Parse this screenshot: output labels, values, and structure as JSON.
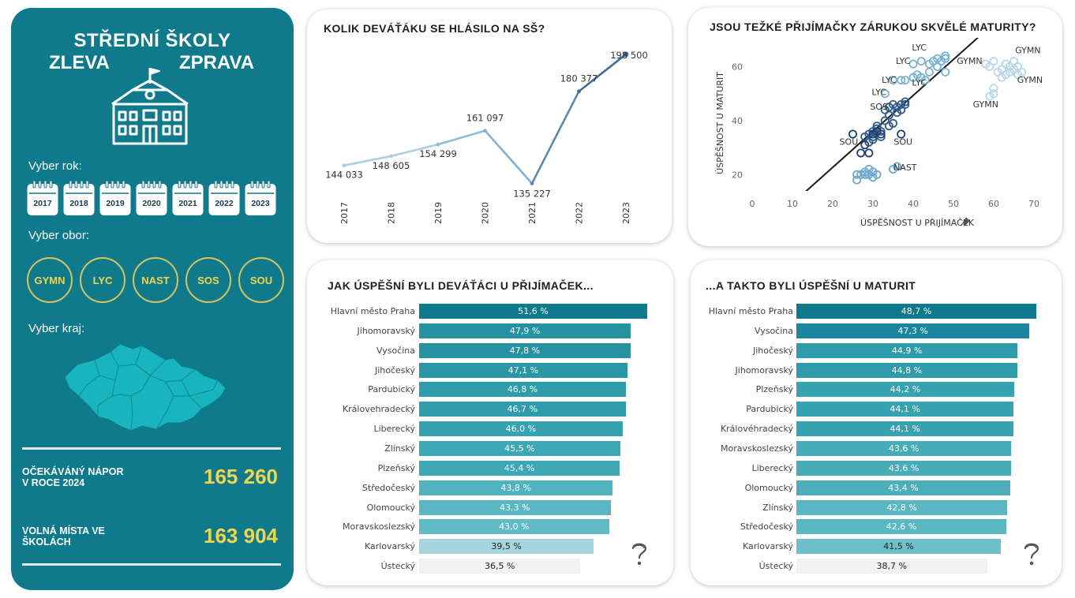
{
  "sidebar": {
    "title_line1": "STŘEDNÍ ŠKOLY",
    "title_left": "ZLEVA",
    "title_right": "ZPRAVA",
    "year_label": "Vyber rok:",
    "years": [
      "2017",
      "2018",
      "2019",
      "2020",
      "2021",
      "2022",
      "2023"
    ],
    "obor_label": "Vyber obor:",
    "obory": [
      "GYMN",
      "LYC",
      "NAST",
      "SOS",
      "SOU"
    ],
    "kraj_label": "Vyber kraj:",
    "kpi1_label_line1": "OČEKÁVÁNÝ NÁPOR",
    "kpi1_label_line2": "V ROCE 2024",
    "kpi1_value": "165 260",
    "kpi2_label_line1": "VOLNÁ MÍSTA VE",
    "kpi2_label_line2": "ŠKOLÁCH",
    "kpi2_value": "163 904",
    "colors": {
      "background": "#0f7a8c",
      "accent": "#f2d54a",
      "circle_border": "#d9c35f"
    },
    "icons": [
      "school-building-icon",
      "calendar-icon",
      "czech-regions-map-icon"
    ]
  },
  "line_card": {
    "title": "KOLIK DEVÁŤÁKU SE HLÁSILO NA SŠ?"
  },
  "scatter_card": {
    "title": "JSOU TEŽKÉ PŘIJÍMAČKY ZÁRUKOU SKVĚLÉ MATURITY?"
  },
  "bars_left_card": {
    "title": "JAK ÚSPĚŠNÍ BYLI DEVÁŤÁCI U PŘIJÍMAČEK..."
  },
  "bars_right_card": {
    "title": "...A TAKTO BYLI ÚSPĚŠNÍ U MATURIT"
  },
  "help_icon": "question-mark-icon",
  "chart_data": [
    {
      "type": "line",
      "title": "KOLIK DEVÁŤÁKU SE HLÁSILO NA SŠ?",
      "x": [
        "2017",
        "2018",
        "2019",
        "2020",
        "2021",
        "2022",
        "2023"
      ],
      "values": [
        144033,
        148605,
        154299,
        161097,
        135227,
        180377,
        198500
      ],
      "labels": [
        "144 033",
        "148 605",
        "154 299",
        "161 097",
        "135 227",
        "180 377",
        "198 500"
      ],
      "ylim": [
        130000,
        200000
      ],
      "line_colors": [
        "#a9cfe3",
        "#a9cfe3",
        "#8fbad8",
        "#7fb1d3",
        "#5b8ab8",
        "#3f6b9a"
      ]
    },
    {
      "type": "scatter",
      "title": "JSOU TEŽKÉ PŘIJÍMAČKY ZÁRUKOU SKVĚLÉ MATURITY?",
      "xlabel": "ÚSPĚŠNOST U PŘIJÍMAČEK",
      "ylabel": "ÚSPĚŠNOST U MATURIT",
      "xticks": [
        0,
        10,
        20,
        30,
        40,
        50,
        60,
        70
      ],
      "yticks": [
        20,
        40,
        60
      ],
      "xlim": [
        0,
        70
      ],
      "ylim": [
        14,
        72
      ],
      "trend_line": [
        [
          9,
          8
        ],
        [
          66,
          84
        ]
      ],
      "annotations": [
        {
          "text": "LYC",
          "x": 41.5,
          "y": 66
        },
        {
          "text": "LYC",
          "x": 37.5,
          "y": 61
        },
        {
          "text": "LYC",
          "x": 34,
          "y": 54
        },
        {
          "text": "LYC",
          "x": 41.5,
          "y": 53
        },
        {
          "text": "LYC",
          "x": 31.5,
          "y": 49.5
        },
        {
          "text": "SOS",
          "x": 31.5,
          "y": 44
        },
        {
          "text": "SOU",
          "x": 24,
          "y": 31
        },
        {
          "text": "SOU",
          "x": 37.5,
          "y": 31
        },
        {
          "text": "NAST",
          "x": 38,
          "y": 21.5
        },
        {
          "text": "GYMN",
          "x": 54,
          "y": 61
        },
        {
          "text": "GYMN",
          "x": 68.5,
          "y": 65
        },
        {
          "text": "GYMN",
          "x": 69,
          "y": 54
        },
        {
          "text": "GYMN",
          "x": 58,
          "y": 45
        }
      ],
      "series": [
        {
          "name": "GYMN",
          "color": "#b5d8ea",
          "points": [
            [
              58,
              61
            ],
            [
              59,
              60
            ],
            [
              60,
              62
            ],
            [
              61,
              58
            ],
            [
              62,
              59
            ],
            [
              63,
              61
            ],
            [
              64,
              60
            ],
            [
              65,
              62
            ],
            [
              62,
              56
            ],
            [
              63,
              57
            ],
            [
              64,
              58
            ],
            [
              65,
              59
            ],
            [
              66,
              57
            ],
            [
              66,
              60
            ],
            [
              67,
              58
            ],
            [
              60,
              50
            ],
            [
              60,
              52
            ],
            [
              59,
              49
            ]
          ]
        },
        {
          "name": "LYC",
          "color": "#7ab2d6",
          "points": [
            [
              40,
              61
            ],
            [
              42,
              62
            ],
            [
              44,
              61
            ],
            [
              45,
              62
            ],
            [
              46,
              63
            ],
            [
              47,
              62
            ],
            [
              48,
              63
            ],
            [
              48,
              64
            ],
            [
              46,
              60
            ],
            [
              44,
              58
            ],
            [
              41,
              57
            ],
            [
              38,
              55
            ],
            [
              35,
              55
            ],
            [
              37,
              55
            ],
            [
              42,
              56
            ],
            [
              48,
              58
            ],
            [
              33,
              50
            ],
            [
              43,
              55
            ],
            [
              40,
              56
            ]
          ]
        },
        {
          "name": "SOS",
          "color": "#2f5a8c",
          "points": [
            [
              33,
              44
            ],
            [
              34,
              45
            ],
            [
              35,
              46
            ],
            [
              36,
              45
            ],
            [
              37,
              46
            ],
            [
              38,
              47
            ],
            [
              36,
              43
            ],
            [
              34,
              42
            ],
            [
              33,
              40
            ],
            [
              31,
              38
            ],
            [
              30,
              36
            ],
            [
              29,
              35
            ],
            [
              31,
              37
            ],
            [
              30,
              34
            ],
            [
              32,
              36
            ],
            [
              34,
              38
            ],
            [
              35,
              39
            ],
            [
              37,
              44
            ],
            [
              38,
              46
            ],
            [
              32,
              34
            ],
            [
              29,
              32
            ],
            [
              30,
              33
            ],
            [
              28,
              34
            ]
          ]
        },
        {
          "name": "SOU",
          "color": "#1e3f6e",
          "points": [
            [
              25,
              35
            ],
            [
              27,
              28
            ],
            [
              28,
              31
            ],
            [
              29,
              28
            ],
            [
              30,
              35
            ],
            [
              31,
              36
            ],
            [
              32,
              35
            ],
            [
              37,
              35
            ]
          ]
        },
        {
          "name": "NAST",
          "color": "#6ea8d0",
          "points": [
            [
              26,
              20
            ],
            [
              26,
              18
            ],
            [
              27,
              20
            ],
            [
              28,
              21
            ],
            [
              29,
              20
            ],
            [
              30,
              21
            ],
            [
              30,
              19
            ],
            [
              28,
              20
            ],
            [
              31,
              20
            ],
            [
              29,
              22
            ],
            [
              35,
              22
            ],
            [
              36,
              23
            ]
          ]
        }
      ]
    },
    {
      "type": "bar",
      "title": "JAK ÚSPĚŠNÍ BYLI DEVÁŤÁCI U PŘIJÍMAČEK...",
      "categories": [
        "Hlavní město Praha",
        "Jihomoravský",
        "Vysočina",
        "Jihočeský",
        "Pardubický",
        "Královehradecký",
        "Liberecký",
        "Zlínský",
        "Plzeňský",
        "Středočeský",
        "Olomoucký",
        "Moravskoslezský",
        "Karlovarský",
        "Ústecký"
      ],
      "values": [
        51.6,
        47.9,
        47.8,
        47.1,
        46.8,
        46.7,
        46.0,
        45.5,
        45.4,
        43.8,
        43.3,
        43.0,
        39.5,
        36.5
      ],
      "labels": [
        "51,6 %",
        "47,9 %",
        "47,8 %",
        "47,1 %",
        "46,8 %",
        "46,7 %",
        "46,0 %",
        "45,5 %",
        "45,4 %",
        "43,8 %",
        "43,3 %",
        "43,0 %",
        "39,5 %",
        "36,5 %"
      ],
      "colors": [
        "#0f7a8c",
        "#2592a2",
        "#2592a2",
        "#2a97a6",
        "#2f9cab",
        "#2f9cab",
        "#37a3b1",
        "#3ca7b5",
        "#3ca7b5",
        "#52b3bf",
        "#5ab7c2",
        "#60bbc5",
        "#a6d6dc",
        "#f1f1f1"
      ],
      "xlim": [
        0,
        51.6
      ]
    },
    {
      "type": "bar",
      "title": "...A TAKTO BYLI ÚSPĚŠNÍ U MATURIT",
      "categories": [
        "Hlavní město Praha",
        "Vysočina",
        "Jihočeský",
        "Jihomoravský",
        "Plzeňský",
        "Pardubický",
        "Královéhradecký",
        "Moravskoslezský",
        "Liberecký",
        "Olomoucký",
        "Zlínský",
        "Středočeský",
        "Karlovarský",
        "Ústecký"
      ],
      "values": [
        48.7,
        47.3,
        44.9,
        44.8,
        44.2,
        44.1,
        44.1,
        43.6,
        43.6,
        43.4,
        42.8,
        42.6,
        41.5,
        38.7
      ],
      "labels": [
        "48,7 %",
        "47,3 %",
        "44,9 %",
        "44,8 %",
        "44,2 %",
        "44,1 %",
        "44,1 %",
        "43,6 %",
        "43,6 %",
        "43,4 %",
        "42,8 %",
        "42,6 %",
        "41,5 %",
        "38,7 %"
      ],
      "colors": [
        "#0f7a8c",
        "#1a86a0",
        "#2f9cab",
        "#2f9cab",
        "#37a3b1",
        "#37a3b1",
        "#37a3b1",
        "#45acb8",
        "#45acb8",
        "#4baeba",
        "#5ab7c2",
        "#5ab7c2",
        "#6dc0ca",
        "#f1f1f1"
      ],
      "xlim": [
        0,
        48.7
      ]
    }
  ]
}
